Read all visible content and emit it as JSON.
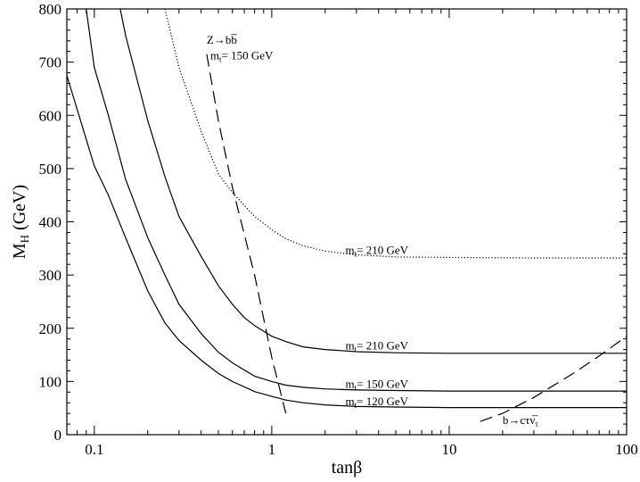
{
  "chart_data": {
    "type": "line",
    "xlabel": "tanβ",
    "ylabel": {
      "main": "M",
      "sub": "H",
      "rest": " (GeV)"
    },
    "xscale": "log",
    "xlim": [
      0.07,
      100
    ],
    "ylim": [
      0,
      800
    ],
    "xticks": [
      {
        "value": 0.1,
        "label": "0.1"
      },
      {
        "value": 1,
        "label": "1"
      },
      {
        "value": 10,
        "label": "10"
      },
      {
        "value": 100,
        "label": "100"
      }
    ],
    "yticks": [
      0,
      100,
      200,
      300,
      400,
      500,
      600,
      700,
      800
    ],
    "grid": false,
    "legend": "none",
    "series": [
      {
        "id": "mt120",
        "style": "solid",
        "x": [
          0.07,
          0.1,
          0.12,
          0.15,
          0.2,
          0.25,
          0.3,
          0.4,
          0.5,
          0.6,
          0.8,
          1.0,
          1.2,
          1.5,
          2,
          3,
          5,
          10,
          30,
          100
        ],
        "y": [
          675,
          505,
          450,
          370,
          270,
          210,
          177,
          140,
          115,
          100,
          81,
          72,
          65,
          60,
          56,
          53,
          52,
          51,
          51,
          51
        ]
      },
      {
        "id": "mt150",
        "style": "solid",
        "x": [
          0.09,
          0.1,
          0.12,
          0.15,
          0.2,
          0.25,
          0.3,
          0.4,
          0.5,
          0.6,
          0.8,
          1.0,
          1.2,
          1.5,
          2,
          3,
          5,
          10,
          30,
          100
        ],
        "y": [
          800,
          690,
          600,
          480,
          370,
          300,
          245,
          190,
          155,
          135,
          110,
          100,
          93,
          89,
          86,
          84,
          83,
          82,
          82,
          82
        ]
      },
      {
        "id": "mt210",
        "style": "solid",
        "x": [
          0.14,
          0.15,
          0.2,
          0.25,
          0.3,
          0.4,
          0.5,
          0.6,
          0.7,
          0.8,
          1.0,
          1.2,
          1.5,
          2,
          3,
          5,
          10,
          30,
          100
        ],
        "y": [
          800,
          750,
          590,
          485,
          410,
          335,
          280,
          245,
          220,
          205,
          185,
          175,
          165,
          160,
          156,
          154,
          153,
          153,
          153
        ]
      },
      {
        "id": "mt210_dotted",
        "style": "dotted",
        "x": [
          0.25,
          0.3,
          0.4,
          0.5,
          0.6,
          0.8,
          1.0,
          1.2,
          1.5,
          2,
          3,
          5,
          10,
          30,
          100
        ],
        "y": [
          800,
          690,
          570,
          490,
          455,
          410,
          385,
          368,
          355,
          345,
          338,
          334,
          333,
          332,
          332
        ]
      },
      {
        "id": "Zbb",
        "style": "dashed",
        "x": [
          0.43,
          0.5,
          0.6,
          0.8,
          1.0,
          1.2
        ],
        "y": [
          715,
          590,
          465,
          300,
          145,
          40
        ]
      },
      {
        "id": "b_ctaunu",
        "style": "dashed",
        "x": [
          15,
          20,
          30,
          50,
          70,
          100
        ],
        "y": [
          25,
          40,
          70,
          115,
          148,
          185
        ]
      }
    ],
    "annotations": [
      {
        "id": "lbl-z",
        "x": 0.43,
        "y": 735,
        "type": "z"
      },
      {
        "id": "lbl-mt150-top",
        "x": 0.45,
        "y": 705,
        "type": "mt",
        "value": "= 150 GeV"
      },
      {
        "id": "lbl-mt210-dotted",
        "x": 2.6,
        "y": 340,
        "type": "mt",
        "value": "= 210 GeV"
      },
      {
        "id": "lbl-mt210",
        "x": 2.6,
        "y": 160,
        "type": "mt",
        "value": "= 210 GeV"
      },
      {
        "id": "lbl-mt150",
        "x": 2.6,
        "y": 88,
        "type": "mt",
        "value": "= 150 GeV"
      },
      {
        "id": "lbl-mt120",
        "x": 2.6,
        "y": 55,
        "type": "mt",
        "value": "= 120 GeV"
      },
      {
        "id": "lbl-btau",
        "x": 20,
        "y": 20,
        "type": "b"
      }
    ]
  }
}
